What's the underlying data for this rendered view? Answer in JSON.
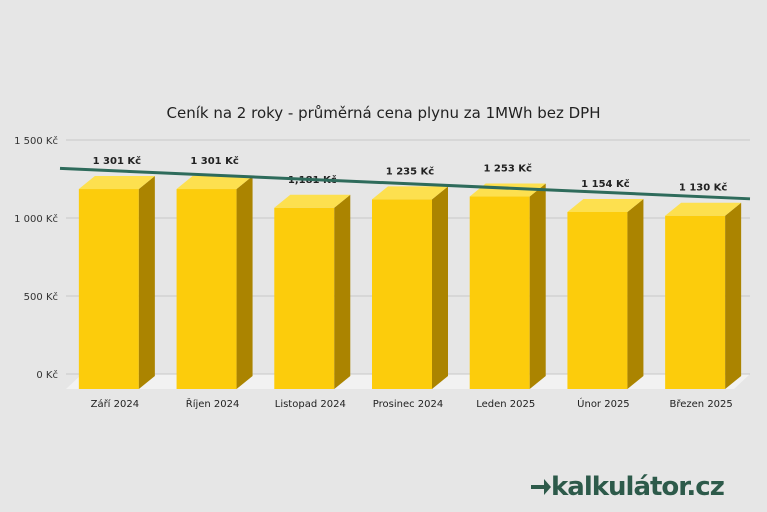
{
  "chart_data": {
    "type": "bar",
    "title": "Ceník na 2 roky - průměrná cena plynu za 1MWh bez DPH",
    "categories": [
      "Září 2024",
      "Říjen 2024",
      "Listopad 2024",
      "Prosinec 2024",
      "Leden 2025",
      "Únor 2025",
      "Březen 2025"
    ],
    "values": [
      1301,
      1301,
      1181,
      1235,
      1253,
      1154,
      1130
    ],
    "data_labels": [
      "1 301 Kč",
      "1 301 Kč",
      "1,181 Kč",
      "1 235 Kč",
      "1 253 Kč",
      "1 154 Kč",
      "1 130 Kč"
    ],
    "yticks": [
      "0 Kč",
      "500 Kč",
      "1 000 Kč",
      "1 500 Kč"
    ],
    "ytick_values": [
      0,
      500,
      1000,
      1500
    ],
    "ylim": [
      0,
      1500
    ],
    "trendline": {
      "start": 1318,
      "end": 1123
    },
    "grid": true,
    "bar_color": "#fccc0c",
    "bar_side_color": "#ab8400",
    "bar_top_color": "#fde04f",
    "trend_color": "#2e6b5b"
  },
  "brand": {
    "text": "kalkulátor.cz",
    "color": "#2d5a4a"
  }
}
